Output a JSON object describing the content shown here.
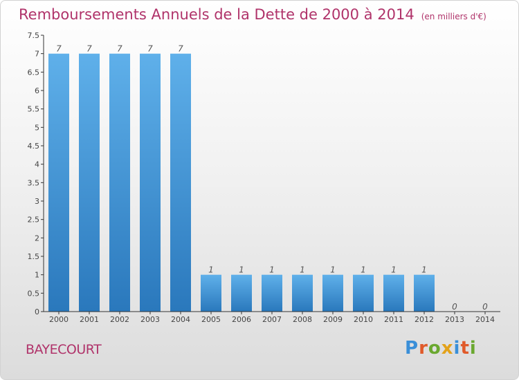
{
  "header": {
    "title": "Remboursements Annuels de la Dette de 2000 à 2014",
    "unit": "(en milliers d'€)"
  },
  "footer": {
    "commune": "BAYECOURT",
    "logo_letters": [
      "P",
      "r",
      "o",
      "x",
      "i",
      "t",
      "i"
    ],
    "logo_colors": [
      "#3a8fd8",
      "#e05a2a",
      "#6aa82f",
      "#e3a21a",
      "#3a8fd8",
      "#e05a2a",
      "#6aa82f"
    ]
  },
  "chart_data": {
    "type": "bar",
    "title": "Remboursements Annuels de la Dette de 2000 à 2014",
    "xlabel": "",
    "ylabel": "",
    "categories": [
      "2000",
      "2001",
      "2002",
      "2003",
      "2004",
      "2005",
      "2006",
      "2007",
      "2008",
      "2009",
      "2010",
      "2011",
      "2012",
      "2013",
      "2014"
    ],
    "values": [
      7,
      7,
      7,
      7,
      7,
      1,
      1,
      1,
      1,
      1,
      1,
      1,
      1,
      0,
      0
    ],
    "data_labels": [
      "7",
      "7",
      "7",
      "7",
      "7",
      "1",
      "1",
      "1",
      "1",
      "1",
      "1",
      "1",
      "1",
      "0",
      "0"
    ],
    "ylim": [
      0,
      7.5
    ],
    "yticks": [
      "0",
      "0.5",
      "1",
      "1.5",
      "2",
      "2.5",
      "3",
      "3.5",
      "4",
      "4.5",
      "5",
      "5.5",
      "6",
      "6.5",
      "7",
      "7.5"
    ],
    "grid": false,
    "bar_color_top": "#5fb0ea",
    "bar_color_bottom": "#2a78bc",
    "axis_color": "#333333"
  }
}
